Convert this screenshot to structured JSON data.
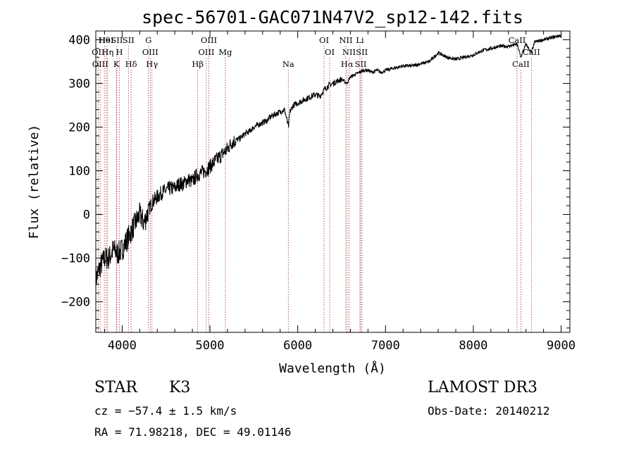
{
  "chart_data": {
    "type": "line",
    "title": "spec-56701-GAC071N47V2_sp12-142.fits",
    "xlabel": "Wavelength (Å)",
    "ylabel": "Flux (relative)",
    "xlim": [
      3700,
      9100
    ],
    "ylim": [
      -270,
      420
    ],
    "xticks": [
      4000,
      5000,
      6000,
      7000,
      8000,
      9000
    ],
    "yticks": [
      -200,
      -100,
      0,
      100,
      200,
      300,
      400
    ],
    "xtick_labels": [
      "4000",
      "5000",
      "6000",
      "7000",
      "8000",
      "9000"
    ],
    "ytick_labels": [
      "−200",
      "−100",
      "0",
      "100",
      "200",
      "300",
      "400"
    ],
    "series": [
      {
        "name": "flux",
        "x": [
          3700,
          3750,
          3800,
          3850,
          3900,
          3950,
          4000,
          4050,
          4100,
          4150,
          4200,
          4250,
          4300,
          4350,
          4400,
          4450,
          4500,
          4550,
          4600,
          4650,
          4700,
          4750,
          4800,
          4850,
          4900,
          4950,
          5000,
          5050,
          5100,
          5150,
          5200,
          5250,
          5300,
          5350,
          5400,
          5450,
          5500,
          5550,
          5600,
          5650,
          5700,
          5750,
          5800,
          5850,
          5895,
          5910,
          5950,
          6000,
          6050,
          6100,
          6150,
          6200,
          6250,
          6300,
          6350,
          6400,
          6450,
          6500,
          6560,
          6600,
          6650,
          6700,
          6750,
          6800,
          6850,
          6900,
          6950,
          7000,
          7100,
          7200,
          7300,
          7400,
          7500,
          7600,
          7650,
          7700,
          7800,
          7900,
          8000,
          8100,
          8200,
          8300,
          8400,
          8500,
          8540,
          8600,
          8660,
          8700,
          8800,
          8900,
          9000
        ],
        "y": [
          -150,
          -120,
          -100,
          -100,
          -80,
          -90,
          -80,
          -60,
          -40,
          -20,
          0,
          -20,
          10,
          30,
          40,
          50,
          55,
          60,
          60,
          70,
          70,
          80,
          75,
          90,
          95,
          100,
          110,
          120,
          130,
          140,
          150,
          165,
          170,
          175,
          185,
          190,
          200,
          205,
          210,
          215,
          225,
          230,
          235,
          240,
          200,
          235,
          250,
          255,
          260,
          265,
          270,
          275,
          270,
          285,
          295,
          300,
          305,
          310,
          300,
          315,
          320,
          325,
          330,
          330,
          325,
          330,
          325,
          330,
          335,
          340,
          340,
          345,
          350,
          370,
          365,
          360,
          355,
          360,
          365,
          375,
          380,
          385,
          385,
          390,
          360,
          390,
          370,
          395,
          400,
          405,
          410
        ]
      }
    ],
    "lines": [
      {
        "name": "Hθ",
        "x": 3798
      },
      {
        "name": "OII",
        "x": 3727
      },
      {
        "name": "OIII",
        "x": 3750
      },
      {
        "name": "HeI",
        "x": 3820
      },
      {
        "name": "Hη",
        "x": 3835
      },
      {
        "name": "K",
        "x": 3934
      },
      {
        "name": "SII",
        "x": 3940
      },
      {
        "name": "H",
        "x": 3969
      },
      {
        "name": "Hδ",
        "x": 4102
      },
      {
        "name": "SII",
        "x": 4072
      },
      {
        "name": "OIII",
        "x": 4320
      },
      {
        "name": "Hγ",
        "x": 4340
      },
      {
        "name": "G",
        "x": 4300
      },
      {
        "name": "OIII",
        "x": 4959
      },
      {
        "name": "Hβ",
        "x": 4861
      },
      {
        "name": "OIII",
        "x": 4988
      },
      {
        "name": "Mg",
        "x": 5175
      },
      {
        "name": "Na",
        "x": 5893
      },
      {
        "name": "OI",
        "x": 6300
      },
      {
        "name": "OI",
        "x": 6364
      },
      {
        "name": "Hα",
        "x": 6563
      },
      {
        "name": "NII",
        "x": 6548
      },
      {
        "name": "NII",
        "x": 6584
      },
      {
        "name": "SII",
        "x": 6717
      },
      {
        "name": "Li",
        "x": 6708
      },
      {
        "name": "SII",
        "x": 6731
      },
      {
        "name": "CaII",
        "x": 8542
      },
      {
        "name": "CaII",
        "x": 8498
      },
      {
        "name": "CaII",
        "x": 8662
      }
    ]
  },
  "info": {
    "object_class": "STAR",
    "subclass": "K3",
    "redshift": "cz = −57.4 ± 1.5 km/s",
    "coords": "RA =  71.98218, DEC =  49.01146",
    "survey": "LAMOST DR3",
    "obs_date": "Obs-Date: 20140212"
  }
}
